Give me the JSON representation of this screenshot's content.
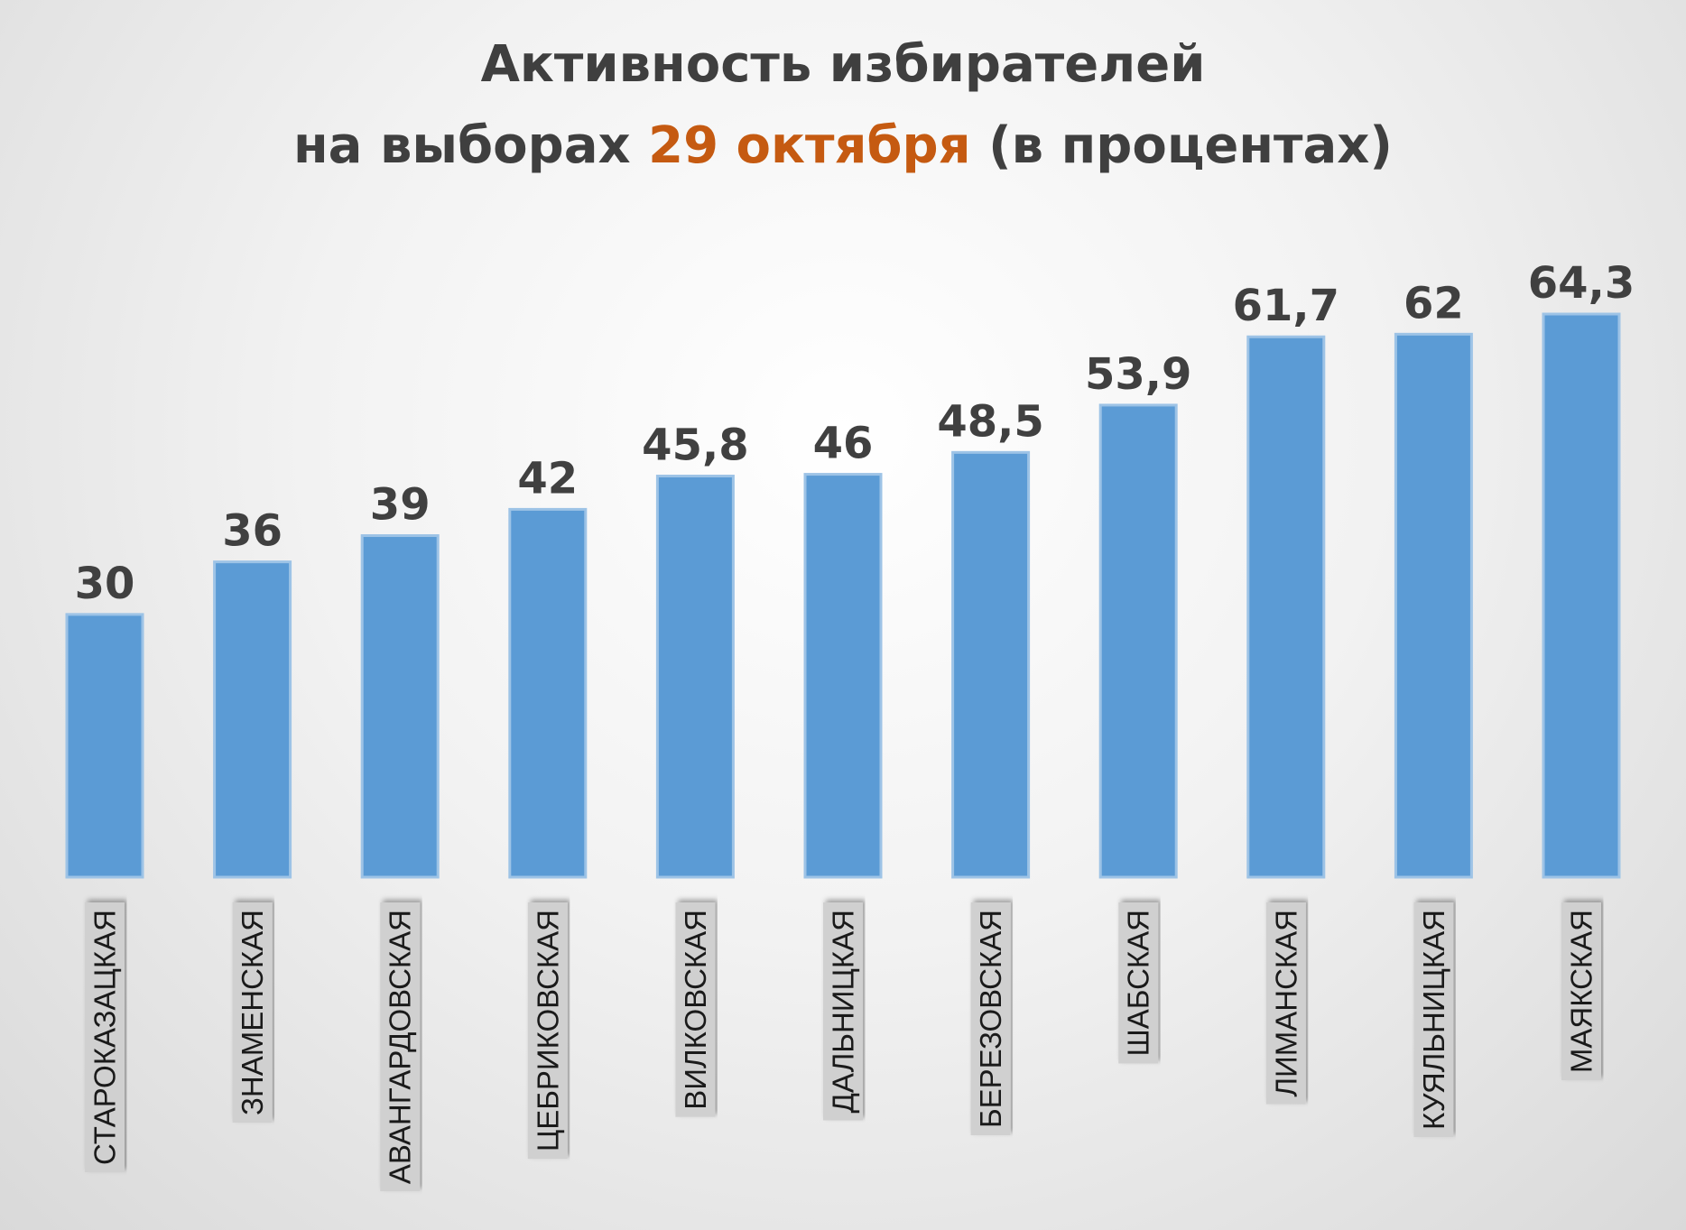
{
  "chart_data": {
    "type": "bar",
    "title_parts": [
      {
        "text": "Активность избирателей",
        "line": 1,
        "accent": false
      },
      {
        "text": "на выборах ",
        "line": 2,
        "accent": false
      },
      {
        "text": "29 октября",
        "line": 2,
        "accent": true
      },
      {
        "text": " (в процентах)",
        "line": 2,
        "accent": false
      }
    ],
    "categories": [
      "СТАРОКАЗАЦКАЯ",
      "ЗНАМЕНСКАЯ",
      "АВАНГАРДОВСКАЯ",
      "ЦЕБРИКОВСКАЯ",
      "ВИЛКОВСКАЯ",
      "ДАЛЬНИЦКАЯ",
      "БЕРЕЗОВСКАЯ",
      "ШАБСКАЯ",
      "ЛИМАНСКАЯ",
      "КУЯЛЬНИЦКАЯ",
      "МАЯКСКАЯ"
    ],
    "values": [
      30,
      36,
      39,
      42,
      45.8,
      46,
      48.5,
      53.9,
      61.7,
      62,
      64.3
    ],
    "value_labels": [
      "30",
      "36",
      "39",
      "42",
      "45,8",
      "46",
      "48,5",
      "53,9",
      "61,7",
      "62",
      "64,3"
    ],
    "highlight_index": 10,
    "ylim": [
      0,
      64.3
    ],
    "grid": false,
    "legend": "none",
    "colors": {
      "bar": "#5b9bd5",
      "bar_border": "#9dc3e6",
      "title": "#3f3f3f",
      "accent": "#c55a11",
      "value_label": "#404040",
      "category_box": "#d0d0d0"
    }
  }
}
